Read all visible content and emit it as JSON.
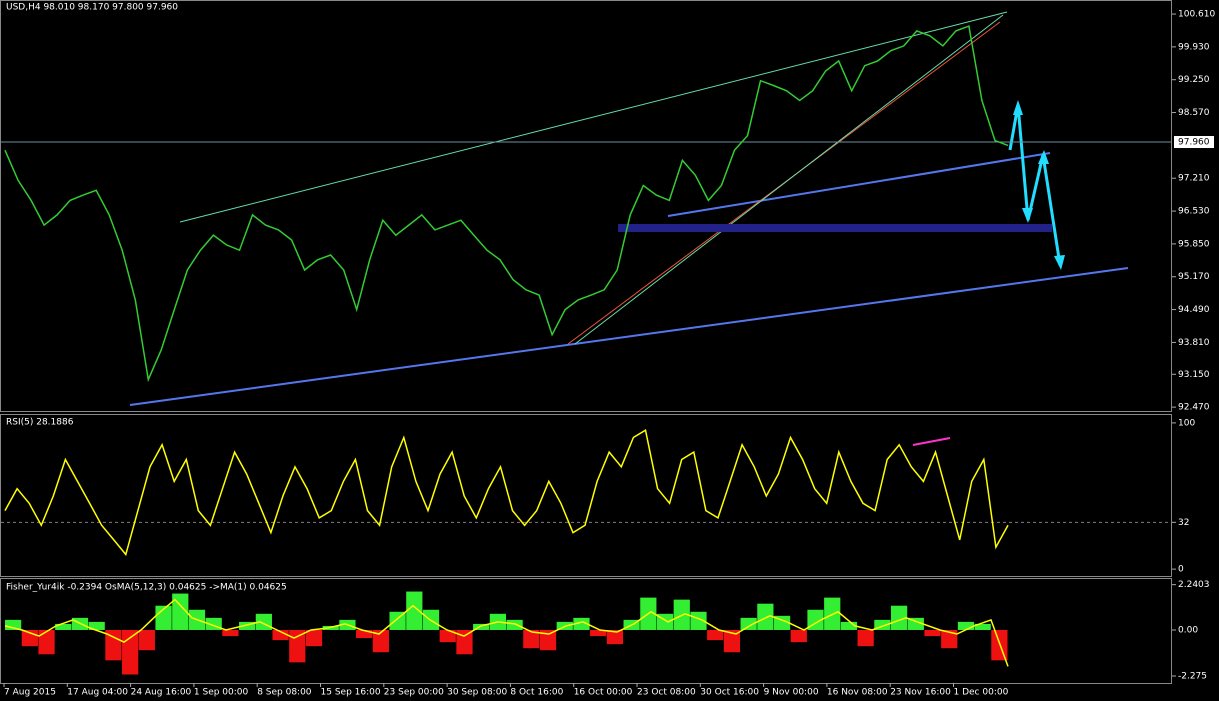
{
  "chart_data": [
    {
      "type": "line",
      "title": "USD,H4  98.010 98.170 97.800 97.960",
      "color": "#33cc33",
      "values": [
        97.79,
        97.17,
        96.75,
        96.24,
        96.45,
        96.75,
        96.86,
        96.96,
        96.45,
        95.72,
        94.69,
        93.04,
        93.66,
        94.49,
        95.31,
        95.72,
        96.03,
        95.83,
        95.72,
        96.45,
        96.24,
        96.14,
        95.93,
        95.31,
        95.52,
        95.62,
        95.31,
        94.49,
        95.52,
        96.34,
        96.03,
        96.24,
        96.45,
        96.14,
        96.24,
        96.34,
        96.03,
        95.72,
        95.52,
        95.11,
        94.9,
        94.79,
        93.97,
        94.49,
        94.69,
        94.79,
        94.9,
        95.31,
        96.45,
        97.06,
        96.86,
        96.75,
        97.58,
        97.27,
        96.75,
        97.06,
        97.79,
        98.09,
        99.23,
        99.13,
        99.02,
        98.82,
        99.02,
        99.43,
        99.64,
        99.02,
        99.54,
        99.64,
        99.85,
        99.95,
        100.26,
        100.16,
        99.95,
        100.26,
        100.36,
        98.82,
        97.99,
        97.89
      ],
      "ylim": [
        92.39,
        100.88
      ],
      "yticks": [
        {
          "value": 100.61,
          "label": "100.610"
        },
        {
          "value": 99.93,
          "label": "99.930"
        },
        {
          "value": 99.25,
          "label": "99.250"
        },
        {
          "value": 98.57,
          "label": "98.570"
        },
        {
          "value": 97.21,
          "label": "97.210"
        },
        {
          "value": 96.53,
          "label": "96.530"
        },
        {
          "value": 95.85,
          "label": "95.850"
        },
        {
          "value": 95.17,
          "label": "95.170"
        },
        {
          "value": 94.49,
          "label": "94.490"
        },
        {
          "value": 93.81,
          "label": "93.810"
        },
        {
          "value": 93.15,
          "label": "93.150"
        },
        {
          "value": 92.47,
          "label": "92.470"
        }
      ],
      "current_price": {
        "value": 97.96,
        "label": "97.960"
      },
      "time_labels": [
        "7 Aug 2015",
        "17 Aug 04:00",
        "24 Aug 16:00",
        "1 Sep 00:00",
        "8 Sep 08:00",
        "15 Sep 16:00",
        "23 Sep 00:00",
        "30 Sep 08:00",
        "8 Oct 16:00",
        "16 Oct 00:00",
        "23 Oct 08:00",
        "30 Oct 16:00",
        "9 Nov 00:00",
        "16 Nov 08:00",
        "23 Nov 16:00",
        "1 Dec 00:00"
      ]
    },
    {
      "type": "line",
      "title": "RSI(5) 28.1886",
      "color": "#ffff00",
      "values": [
        40,
        55,
        45,
        30,
        50,
        75,
        60,
        45,
        30,
        20,
        10,
        40,
        70,
        85,
        60,
        75,
        40,
        30,
        55,
        80,
        65,
        45,
        25,
        50,
        70,
        55,
        35,
        40,
        60,
        75,
        40,
        30,
        70,
        90,
        60,
        40,
        65,
        80,
        50,
        35,
        55,
        70,
        40,
        30,
        40,
        60,
        45,
        25,
        30,
        60,
        80,
        70,
        90,
        95,
        55,
        45,
        75,
        80,
        40,
        35,
        60,
        85,
        70,
        50,
        65,
        90,
        75,
        55,
        45,
        80,
        60,
        45,
        40,
        75,
        85,
        70,
        60,
        80,
        50,
        20,
        60,
        75,
        15,
        30
      ],
      "ylim": [
        -4.7,
        105.4
      ],
      "yticks": [
        0,
        32,
        100
      ],
      "level": 32
    },
    {
      "type": "histogram",
      "title": "Fisher_Yur4ik -0.2394  OsMA(5,12,3) 0.04625  ->MA(1) 0.04625",
      "series": [
        {
          "color": "#33ee33",
          "negative_color": "#ee1111",
          "values": [
            0.5,
            -0.8,
            -1.2,
            0.3,
            0.6,
            0.4,
            -1.5,
            -2.2,
            -1.0,
            1.2,
            1.8,
            1.0,
            0.6,
            -0.3,
            0.4,
            0.8,
            -0.5,
            -1.6,
            -0.8,
            0.2,
            0.5,
            -0.4,
            -1.1,
            0.9,
            1.9,
            1.0,
            -0.6,
            -1.2,
            0.3,
            0.8,
            0.5,
            -0.9,
            -1.0,
            0.4,
            0.6,
            -0.3,
            -0.7,
            0.5,
            1.6,
            0.8,
            1.5,
            0.9,
            -0.5,
            -1.1,
            0.6,
            1.3,
            0.7,
            -0.6,
            1.0,
            1.6,
            0.4,
            -0.8,
            0.5,
            1.2,
            0.6,
            -0.3,
            -0.9,
            0.4,
            0.3,
            -1.5
          ]
        },
        {
          "color": "#ffff00",
          "values": [
            0.2,
            0.0,
            -0.3,
            0.2,
            0.5,
            0.1,
            -0.2,
            -0.6,
            0.0,
            0.8,
            1.5,
            0.6,
            0.3,
            0.0,
            0.2,
            0.4,
            0.0,
            -0.4,
            0.0,
            0.1,
            0.3,
            0.0,
            -0.2,
            0.5,
            1.2,
            0.5,
            0.0,
            -0.3,
            0.2,
            0.4,
            0.3,
            -0.1,
            -0.2,
            0.2,
            0.4,
            0.0,
            -0.1,
            0.3,
            0.9,
            0.4,
            0.8,
            0.5,
            0.0,
            -0.2,
            0.3,
            0.7,
            0.4,
            0.0,
            0.5,
            0.9,
            0.2,
            0.0,
            0.3,
            0.6,
            0.3,
            0.0,
            -0.2,
            0.2,
            0.5,
            -1.8
          ]
        }
      ],
      "ylim": [
        -2.62,
        2.52
      ],
      "yticks": [
        2.2403,
        {
          "value": 0,
          "label": "0.00"
        },
        -2.275
      ]
    }
  ]
}
